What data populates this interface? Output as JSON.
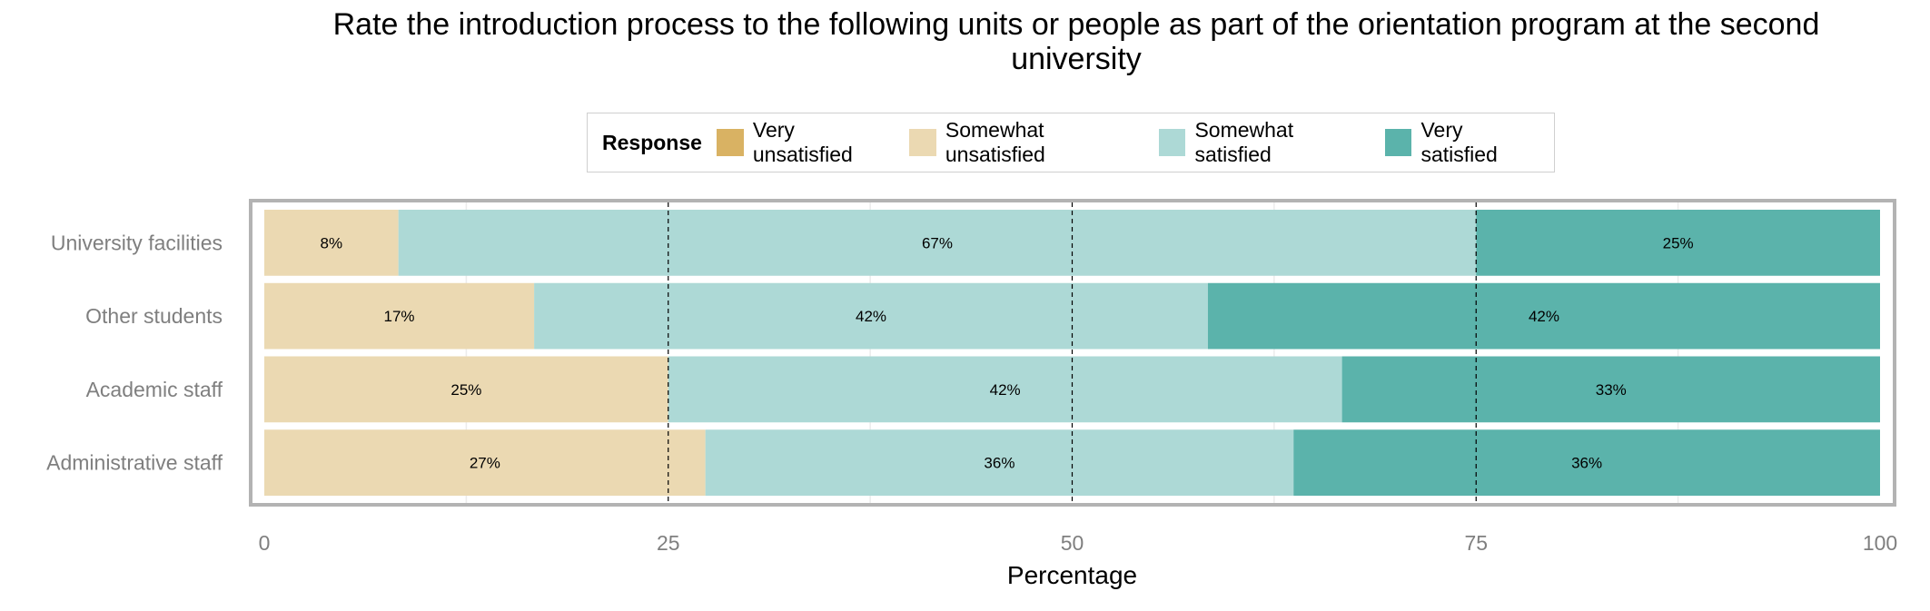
{
  "chart_data": {
    "type": "bar",
    "orientation": "horizontal",
    "stacked": true,
    "title": "Rate the introduction process to the following units or people as part of the orientation program at the second university",
    "xlabel": "Percentage",
    "ylabel": "",
    "xlim": [
      0,
      100
    ],
    "xticks": [
      0,
      25,
      50,
      75,
      100
    ],
    "grid": true,
    "reference_lines": [
      25,
      50,
      75
    ],
    "legend": {
      "title": "Response",
      "position": "top"
    },
    "categories": [
      "University facilities",
      "Other students",
      "Academic staff",
      "Administrative staff"
    ],
    "series": [
      {
        "name": "Very unsatisfied",
        "color": "#D9B263",
        "values": [
          0,
          0,
          0,
          0
        ],
        "labels": [
          "",
          "",
          "",
          ""
        ]
      },
      {
        "name": "Somewhat unsatisfied",
        "color": "#EBD9B2",
        "values": [
          8.3,
          16.7,
          25,
          27.3
        ],
        "labels": [
          "8%",
          "17%",
          "25%",
          "27%"
        ]
      },
      {
        "name": "Somewhat satisfied",
        "color": "#ADD9D6",
        "values": [
          66.7,
          41.7,
          41.7,
          36.4
        ],
        "labels": [
          "67%",
          "42%",
          "42%",
          "36%"
        ]
      },
      {
        "name": "Very satisfied",
        "color": "#5BB3AB",
        "values": [
          25,
          41.6,
          33.3,
          36.3
        ],
        "labels": [
          "25%",
          "42%",
          "33%",
          "36%"
        ]
      }
    ]
  }
}
